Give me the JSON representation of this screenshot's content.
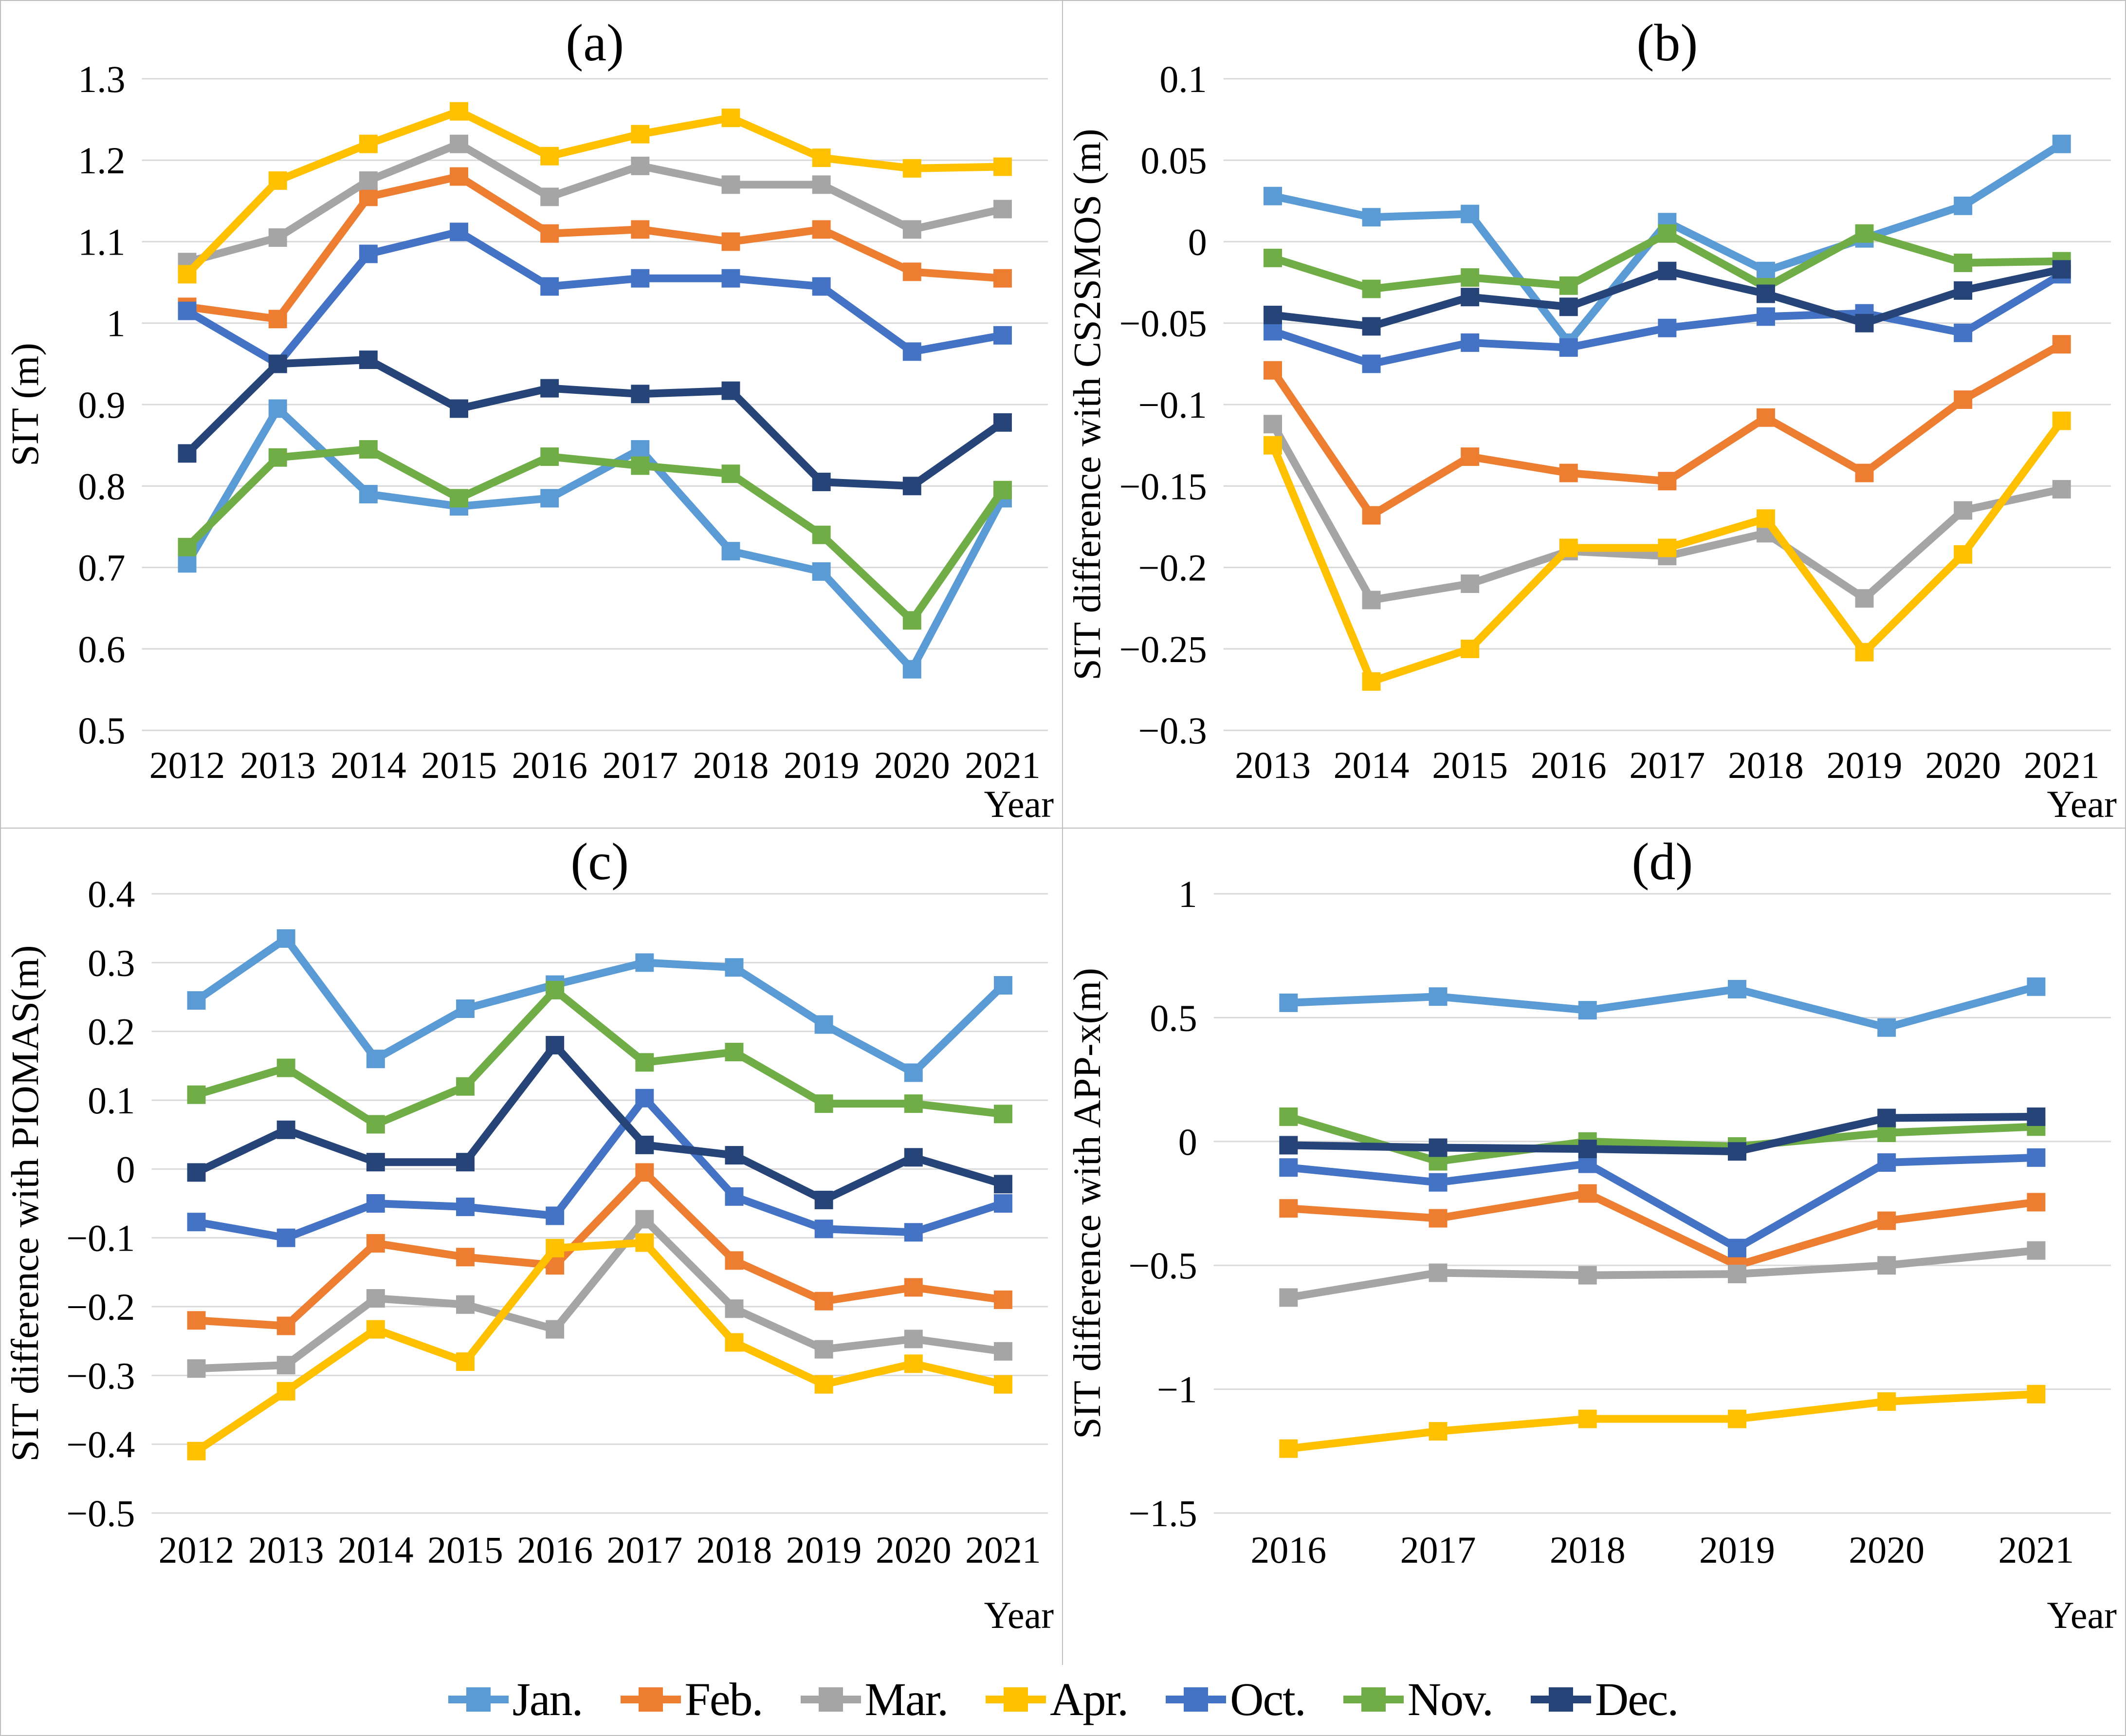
{
  "figure": {
    "description": "Four-panel line chart comparing monthly SIT (sea ice thickness) and SIT differences with CS2SMOS, PIOMAS and APP-x products"
  },
  "legend": {
    "series": [
      {
        "label": "Jan.",
        "color": "#5B9BD5"
      },
      {
        "label": "Feb.",
        "color": "#ED7D31"
      },
      {
        "label": "Mar.",
        "color": "#A5A5A5"
      },
      {
        "label": "Apr.",
        "color": "#FFC000"
      },
      {
        "label": "Oct.",
        "color": "#4472C4"
      },
      {
        "label": "Nov.",
        "color": "#70AD47"
      },
      {
        "label": "Dec.",
        "color": "#264478"
      }
    ],
    "grid_color": "#D9D9D9",
    "border_color": "#BFBFBF"
  },
  "chart_data": [
    {
      "type": "line",
      "title": "(a)",
      "ylabel": "SIT (m)",
      "xlabel": "Year",
      "categories": [
        "2012",
        "2013",
        "2014",
        "2015",
        "2016",
        "2017",
        "2018",
        "2019",
        "2020",
        "2021"
      ],
      "ylim": [
        0.5,
        1.3
      ],
      "yticks": [
        1.3,
        1.2,
        1.1,
        1,
        0.9,
        0.8,
        0.7,
        0.6,
        0.5
      ],
      "grid": true,
      "series": [
        {
          "name": "Jan.",
          "values": [
            0.705,
            0.895,
            0.79,
            0.775,
            0.785,
            0.845,
            0.72,
            0.695,
            0.575,
            0.785
          ]
        },
        {
          "name": "Feb.",
          "values": [
            1.02,
            1.005,
            1.155,
            1.18,
            1.11,
            1.115,
            1.1,
            1.115,
            1.063,
            1.055
          ]
        },
        {
          "name": "Mar.",
          "values": [
            1.075,
            1.105,
            1.175,
            1.22,
            1.155,
            1.193,
            1.17,
            1.17,
            1.115,
            1.14
          ]
        },
        {
          "name": "Apr.",
          "values": [
            1.06,
            1.175,
            1.22,
            1.26,
            1.205,
            1.232,
            1.252,
            1.203,
            1.19,
            1.192
          ]
        },
        {
          "name": "Oct.",
          "values": [
            1.015,
            0.95,
            1.085,
            1.112,
            1.045,
            1.055,
            1.055,
            1.045,
            0.965,
            0.985
          ]
        },
        {
          "name": "Nov.",
          "values": [
            0.725,
            0.835,
            0.845,
            0.785,
            0.836,
            0.825,
            0.815,
            0.74,
            0.635,
            0.795
          ]
        },
        {
          "name": "Dec.",
          "values": [
            0.84,
            0.95,
            0.955,
            0.895,
            0.92,
            0.913,
            0.917,
            0.805,
            0.8,
            0.878
          ]
        }
      ]
    },
    {
      "type": "line",
      "title": "(b)",
      "ylabel": "SIT difference with CS2SMOS (m)",
      "xlabel": "Year",
      "categories": [
        "2013",
        "2014",
        "2015",
        "2016",
        "2017",
        "2018",
        "2019",
        "2020",
        "2021"
      ],
      "ylim": [
        -0.3,
        0.1
      ],
      "yticks": [
        0.1,
        0.05,
        0,
        -0.05,
        -0.1,
        -0.15,
        -0.2,
        -0.25,
        -0.3
      ],
      "grid": true,
      "series": [
        {
          "name": "Jan.",
          "values": [
            0.028,
            0.015,
            0.017,
            -0.062,
            0.012,
            -0.018,
            0.002,
            0.022,
            0.06
          ]
        },
        {
          "name": "Feb.",
          "values": [
            -0.079,
            -0.168,
            -0.132,
            -0.142,
            -0.147,
            -0.108,
            -0.142,
            -0.097,
            -0.063
          ]
        },
        {
          "name": "Mar.",
          "values": [
            -0.112,
            -0.22,
            -0.21,
            -0.19,
            -0.193,
            -0.179,
            -0.219,
            -0.165,
            -0.152
          ]
        },
        {
          "name": "Apr.",
          "values": [
            -0.125,
            -0.27,
            -0.25,
            -0.188,
            -0.188,
            -0.17,
            -0.252,
            -0.192,
            -0.11
          ]
        },
        {
          "name": "Oct.",
          "values": [
            -0.055,
            -0.075,
            -0.062,
            -0.065,
            -0.053,
            -0.046,
            -0.044,
            -0.056,
            -0.02
          ]
        },
        {
          "name": "Nov.",
          "values": [
            -0.01,
            -0.029,
            -0.022,
            -0.027,
            0.005,
            -0.028,
            0.005,
            -0.013,
            -0.012
          ]
        },
        {
          "name": "Dec.",
          "values": [
            -0.045,
            -0.052,
            -0.034,
            -0.04,
            -0.018,
            -0.032,
            -0.05,
            -0.03,
            -0.017
          ]
        }
      ]
    },
    {
      "type": "line",
      "title": "(c)",
      "ylabel": "SIT difference with PIOMAS(m)",
      "xlabel": "Year",
      "categories": [
        "2012",
        "2013",
        "2014",
        "2015",
        "2016",
        "2017",
        "2018",
        "2019",
        "2020",
        "2021"
      ],
      "ylim": [
        -0.5,
        0.4
      ],
      "yticks": [
        0.4,
        0.3,
        0.2,
        0.1,
        0,
        -0.1,
        -0.2,
        -0.3,
        -0.4,
        -0.5
      ],
      "grid": true,
      "series": [
        {
          "name": "Jan.",
          "values": [
            0.245,
            0.335,
            0.16,
            0.233,
            0.268,
            0.3,
            0.293,
            0.21,
            0.14,
            0.267
          ]
        },
        {
          "name": "Feb.",
          "values": [
            -0.22,
            -0.228,
            -0.108,
            -0.128,
            -0.14,
            -0.005,
            -0.133,
            -0.192,
            -0.172,
            -0.19
          ]
        },
        {
          "name": "Mar.",
          "values": [
            -0.29,
            -0.285,
            -0.188,
            -0.197,
            -0.233,
            -0.073,
            -0.203,
            -0.262,
            -0.247,
            -0.265
          ]
        },
        {
          "name": "Apr.",
          "values": [
            -0.41,
            -0.323,
            -0.233,
            -0.28,
            -0.115,
            -0.107,
            -0.252,
            -0.313,
            -0.283,
            -0.313
          ]
        },
        {
          "name": "Oct.",
          "values": [
            -0.077,
            -0.1,
            -0.05,
            -0.055,
            -0.068,
            0.103,
            -0.04,
            -0.087,
            -0.092,
            -0.05
          ]
        },
        {
          "name": "Nov.",
          "values": [
            0.108,
            0.147,
            0.065,
            0.12,
            0.26,
            0.155,
            0.17,
            0.095,
            0.095,
            0.08
          ]
        },
        {
          "name": "Dec.",
          "values": [
            -0.005,
            0.057,
            0.01,
            0.01,
            0.18,
            0.035,
            0.02,
            -0.045,
            0.017,
            -0.022
          ]
        }
      ]
    },
    {
      "type": "line",
      "title": "(d)",
      "ylabel": "SIT difference with APP-x(m)",
      "xlabel": "Year",
      "categories": [
        "2016",
        "2017",
        "2018",
        "2019",
        "2020",
        "2021"
      ],
      "ylim": [
        -1.5,
        1
      ],
      "yticks": [
        1,
        0.5,
        0,
        -0.5,
        -1,
        -1.5
      ],
      "grid": true,
      "series": [
        {
          "name": "Jan.",
          "values": [
            0.56,
            0.585,
            0.53,
            0.615,
            0.46,
            0.625
          ]
        },
        {
          "name": "Feb.",
          "values": [
            -0.27,
            -0.31,
            -0.21,
            -0.5,
            -0.32,
            -0.245
          ]
        },
        {
          "name": "Mar.",
          "values": [
            -0.63,
            -0.53,
            -0.54,
            -0.535,
            -0.5,
            -0.44
          ]
        },
        {
          "name": "Apr.",
          "values": [
            -1.24,
            -1.17,
            -1.12,
            -1.12,
            -1.05,
            -1.02
          ]
        },
        {
          "name": "Oct.",
          "values": [
            -0.105,
            -0.165,
            -0.09,
            -0.43,
            -0.085,
            -0.065
          ]
        },
        {
          "name": "Nov.",
          "values": [
            0.1,
            -0.08,
            0.0,
            -0.02,
            0.035,
            0.06
          ]
        },
        {
          "name": "Dec.",
          "values": [
            -0.015,
            -0.025,
            -0.03,
            -0.04,
            0.095,
            0.1
          ]
        }
      ]
    }
  ]
}
